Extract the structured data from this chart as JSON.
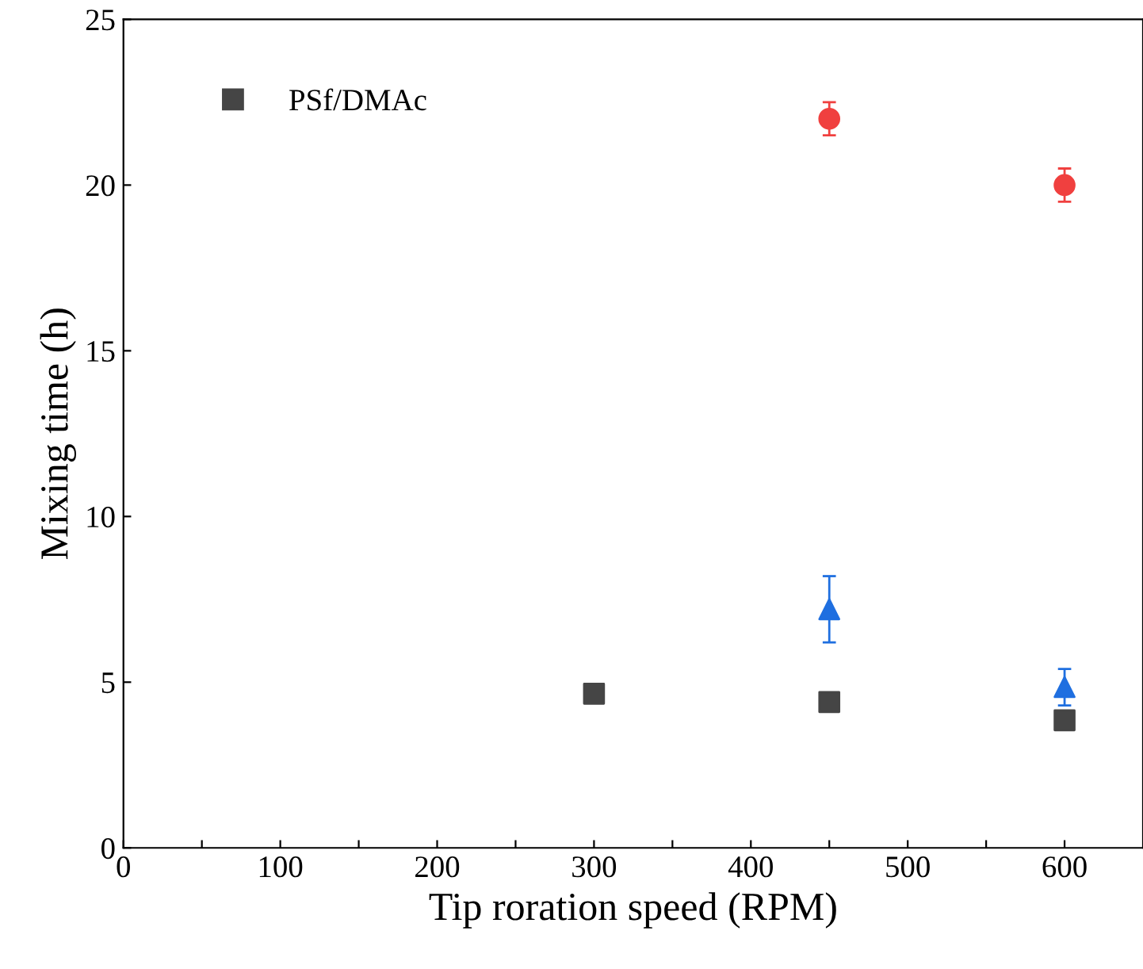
{
  "chart_data": {
    "type": "scatter",
    "xlabel": "Tip roration speed (RPM)",
    "ylabel": "Mixing time (h)",
    "series": [
      {
        "name": "PSf/DMAc",
        "color": "#454545",
        "marker": "square",
        "x": [
          300,
          450,
          600
        ],
        "values": [
          4.65,
          4.4,
          3.85
        ],
        "errors": [
          0.25,
          null,
          null
        ]
      },
      {
        "color": "#f0403f",
        "marker": "circle",
        "x": [
          450,
          600
        ],
        "values": [
          22.0,
          20.0
        ],
        "errors": [
          0.5,
          0.5
        ]
      },
      {
        "color": "#1f6fe0",
        "marker": "triangle",
        "x": [
          450,
          600
        ],
        "values": [
          7.2,
          4.85
        ],
        "errors": [
          1.0,
          0.55
        ]
      }
    ],
    "xlim": [
      0,
      650
    ],
    "ylim": [
      0,
      25
    ],
    "xticks": [
      0,
      {
        "value": 50,
        "label": null
      },
      100,
      {
        "value": 150,
        "label": null
      },
      200,
      {
        "value": 250,
        "label": null
      },
      300,
      {
        "value": 350,
        "label": null
      },
      400,
      {
        "value": 450,
        "label": null
      },
      500,
      {
        "value": 550,
        "label": null
      },
      600
    ],
    "yticks": [
      0,
      5,
      10,
      15,
      20,
      25
    ],
    "legend": "top left",
    "grid": false
  }
}
